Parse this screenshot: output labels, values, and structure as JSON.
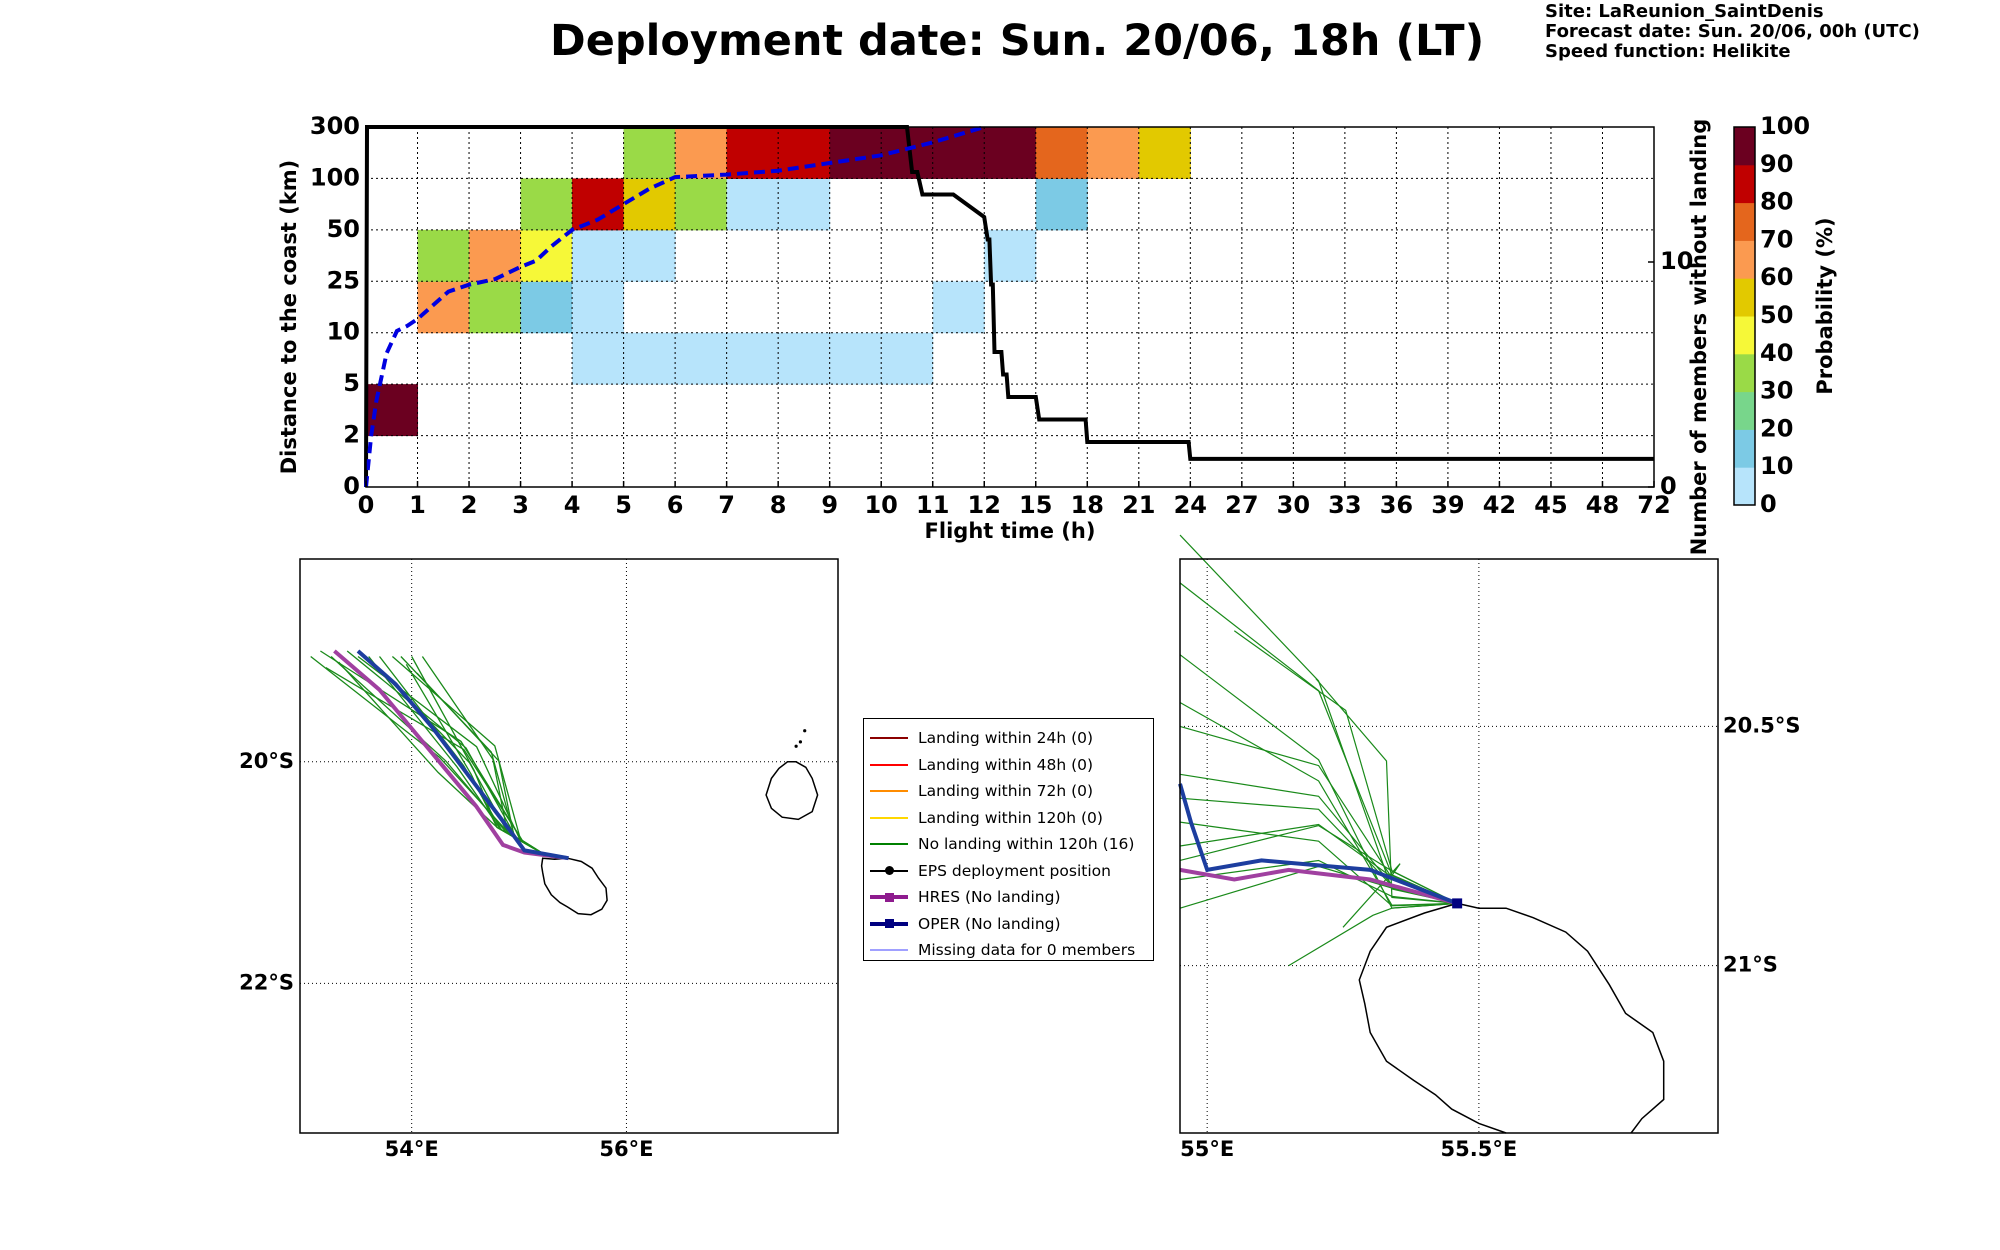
{
  "title": "Deployment date: Sun. 20/06, 18h (LT)",
  "info": {
    "site": "Site: LaReunion_SaintDenis",
    "forecast": "Forecast date: Sun. 20/06, 00h (UTC)",
    "speed": "Speed function: Helikite"
  },
  "chart_data": [
    {
      "type": "heatmap",
      "name": "landing-probability",
      "xlabel": "Flight time (h)",
      "ylabel": "Distance to the coast (km)",
      "y2label": "Number of members without landing",
      "x_tick_labels": [
        "0",
        "1",
        "2",
        "3",
        "4",
        "5",
        "6",
        "7",
        "8",
        "9",
        "10",
        "11",
        "12",
        "15",
        "18",
        "21",
        "24",
        "27",
        "30",
        "33",
        "36",
        "39",
        "42",
        "45",
        "48",
        "72"
      ],
      "y_tick_labels": [
        "0",
        "2",
        "5",
        "10",
        "25",
        "50",
        "100",
        "300"
      ],
      "y2_ticks": [
        "0",
        "10"
      ],
      "y2_range": [
        0,
        16
      ],
      "colorbar": {
        "label": "Probability (%)",
        "ticks": [
          "0",
          "10",
          "20",
          "30",
          "40",
          "50",
          "60",
          "70",
          "80",
          "90",
          "100"
        ],
        "colors": [
          "#b7e4fb",
          "#7ccae5",
          "#78d68b",
          "#9ada47",
          "#f6f838",
          "#e2c900",
          "#fb9a50",
          "#e4661d",
          "#c00000",
          "#6b0020"
        ]
      },
      "cells": [
        {
          "t": 0,
          "d": 1,
          "p": 100
        },
        {
          "t": 1,
          "d": 3,
          "p": 60
        },
        {
          "t": 1,
          "d": 4,
          "p": 30
        },
        {
          "t": 2,
          "d": 3,
          "p": 30
        },
        {
          "t": 2,
          "d": 4,
          "p": 60
        },
        {
          "t": 3,
          "d": 3,
          "p": 10
        },
        {
          "t": 3,
          "d": 4,
          "p": 40
        },
        {
          "t": 3,
          "d": 5,
          "p": 30
        },
        {
          "t": 4,
          "d": 2,
          "p": 5
        },
        {
          "t": 4,
          "d": 3,
          "p": 5
        },
        {
          "t": 4,
          "d": 4,
          "p": 5
        },
        {
          "t": 4,
          "d": 5,
          "p": 80
        },
        {
          "t": 5,
          "d": 2,
          "p": 5
        },
        {
          "t": 5,
          "d": 4,
          "p": 5
        },
        {
          "t": 5,
          "d": 5,
          "p": 50
        },
        {
          "t": 5,
          "d": 6,
          "p": 30
        },
        {
          "t": 6,
          "d": 2,
          "p": 5
        },
        {
          "t": 6,
          "d": 5,
          "p": 30
        },
        {
          "t": 6,
          "d": 6,
          "p": 60
        },
        {
          "t": 7,
          "d": 2,
          "p": 5
        },
        {
          "t": 7,
          "d": 5,
          "p": 5
        },
        {
          "t": 7,
          "d": 6,
          "p": 80
        },
        {
          "t": 8,
          "d": 2,
          "p": 5
        },
        {
          "t": 8,
          "d": 5,
          "p": 5
        },
        {
          "t": 8,
          "d": 6,
          "p": 80
        },
        {
          "t": 9,
          "d": 2,
          "p": 5
        },
        {
          "t": 9,
          "d": 6,
          "p": 100
        },
        {
          "t": 10,
          "d": 2,
          "p": 5
        },
        {
          "t": 10,
          "d": 6,
          "p": 100
        },
        {
          "t": 11,
          "d": 3,
          "p": 5
        },
        {
          "t": 11,
          "d": 6,
          "p": 100
        },
        {
          "t": 12,
          "d": 4,
          "p": 5
        },
        {
          "t": 12,
          "d": 6,
          "p": 100
        },
        {
          "t": 13,
          "d": 5,
          "p": 10
        },
        {
          "t": 13,
          "d": 6,
          "p": 70
        },
        {
          "t": 14,
          "d": 6,
          "p": 60
        },
        {
          "t": 15,
          "d": 6,
          "p": 50
        }
      ],
      "median_distance_km": {
        "x": [
          0,
          0.1,
          0.2,
          0.4,
          0.6,
          0.8,
          1.0,
          1.3,
          1.6,
          2.0,
          2.5,
          3.0,
          3.3,
          3.6,
          4.0,
          4.5,
          5.0,
          5.5,
          6.0,
          7.0,
          8.0,
          9.0,
          10.0,
          11.0,
          12.0
        ],
        "y": [
          0,
          2,
          4,
          8,
          10.5,
          12,
          14,
          18,
          22,
          24,
          26,
          32,
          35,
          42,
          50,
          60,
          75,
          90,
          105,
          115,
          130,
          160,
          190,
          240,
          300
        ]
      },
      "members_without_landing": {
        "x": [
          0,
          0.02,
          10.5,
          10.6,
          10.7,
          10.8,
          11.4,
          12.0,
          12.2,
          12.3,
          12.4,
          12.5,
          12.6,
          13.0,
          13.1,
          13.3,
          13.4,
          15.0,
          15.2,
          15.3,
          15.4,
          17.9,
          18.0,
          23.9,
          24.0,
          72
        ],
        "y": [
          0,
          16,
          16,
          14,
          14,
          13,
          13,
          12,
          11,
          11,
          9,
          9,
          6,
          6,
          5,
          5,
          4,
          4,
          3,
          3,
          3,
          3,
          2,
          2,
          1.25,
          1.25
        ]
      }
    },
    {
      "type": "line",
      "name": "map-overview",
      "x_ticks": [
        "54°E",
        "56°E"
      ],
      "y_ticks": [
        "20°S",
        "22°S"
      ],
      "lon_range": [
        52.96,
        57.97
      ],
      "lat_range": [
        -18.17,
        -23.35
      ]
    },
    {
      "type": "line",
      "name": "map-zoom",
      "x_ticks": [
        "55°E",
        "55.5°E"
      ],
      "y_ticks": [
        "20.5°S",
        "21°S"
      ]
    }
  ],
  "legend": [
    {
      "label": "Landing within 24h (0)",
      "color": "#8b0000",
      "marker": "none",
      "width": 2
    },
    {
      "label": "Landing within 48h (0)",
      "color": "#ff0000",
      "marker": "none",
      "width": 2
    },
    {
      "label": "Landing within 72h (0)",
      "color": "#ff8c00",
      "marker": "none",
      "width": 2
    },
    {
      "label": "Landing within 120h (0)",
      "color": "#ffd700",
      "marker": "none",
      "width": 2
    },
    {
      "label": "No landing within 120h (16)",
      "color": "#008000",
      "marker": "none",
      "width": 2
    },
    {
      "label": "EPS deployment position",
      "color": "#000000",
      "marker": "circle",
      "width": 2
    },
    {
      "label": "HRES (No landing)",
      "color": "#8e1b8e",
      "marker": "square",
      "width": 4
    },
    {
      "label": "OPER (No landing)",
      "color": "#000080",
      "marker": "square",
      "width": 4
    },
    {
      "label": "Missing data for 0 members",
      "color": "#4040ff",
      "marker": "none",
      "width": 1
    }
  ]
}
